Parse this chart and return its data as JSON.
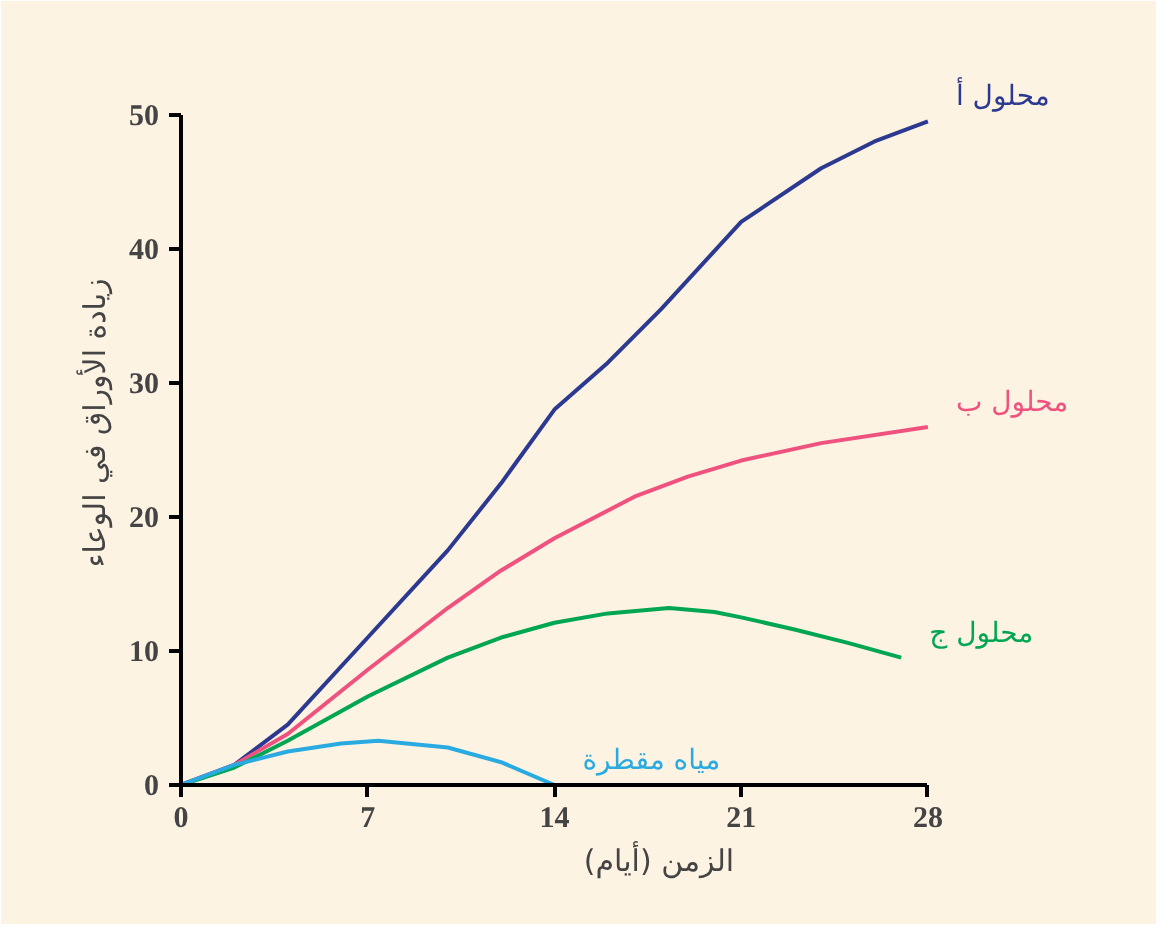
{
  "chart_data": {
    "type": "line",
    "xlabel": "الزمن (أيام)",
    "ylabel": "زيادة الأوراق في الوعاء",
    "xlim": [
      0,
      28
    ],
    "ylim": [
      0,
      50
    ],
    "xticks": [
      0,
      7,
      14,
      21,
      28
    ],
    "yticks": [
      0,
      10,
      20,
      30,
      40,
      50
    ],
    "grid": false,
    "marker": "none",
    "line_style": "solid",
    "series": [
      {
        "name": "محلول أ",
        "color": "#2b3990",
        "x": [
          0,
          2,
          4,
          7,
          10,
          12,
          14,
          16,
          18,
          21,
          24,
          26,
          28
        ],
        "values": [
          0,
          1.5,
          4.5,
          11,
          17.5,
          22.5,
          28,
          31.5,
          35.5,
          42,
          46,
          48,
          49.5
        ]
      },
      {
        "name": "محلول ب",
        "color": "#f0527f",
        "x": [
          0,
          2,
          4,
          7,
          10,
          12,
          14,
          17,
          19,
          21,
          24,
          28
        ],
        "values": [
          0,
          1.5,
          3.8,
          8.6,
          13.2,
          16,
          18.4,
          21.5,
          23,
          24.2,
          25.5,
          26.7
        ]
      },
      {
        "name": "محلول ج",
        "color": "#00a651",
        "x": [
          0,
          2,
          4,
          7,
          10,
          12,
          14,
          16,
          18.3,
          20,
          21,
          23,
          25,
          27
        ],
        "values": [
          0,
          1.3,
          3.3,
          6.6,
          9.5,
          11,
          12.1,
          12.8,
          13.2,
          12.9,
          12.5,
          11.6,
          10.6,
          9.5
        ]
      },
      {
        "name": "مياه مقطرة",
        "color": "#29abe2",
        "x": [
          0,
          2,
          4,
          6,
          7.4,
          10,
          12,
          14
        ],
        "values": [
          0,
          1.5,
          2.5,
          3.1,
          3.3,
          2.8,
          1.7,
          0
        ]
      }
    ]
  }
}
